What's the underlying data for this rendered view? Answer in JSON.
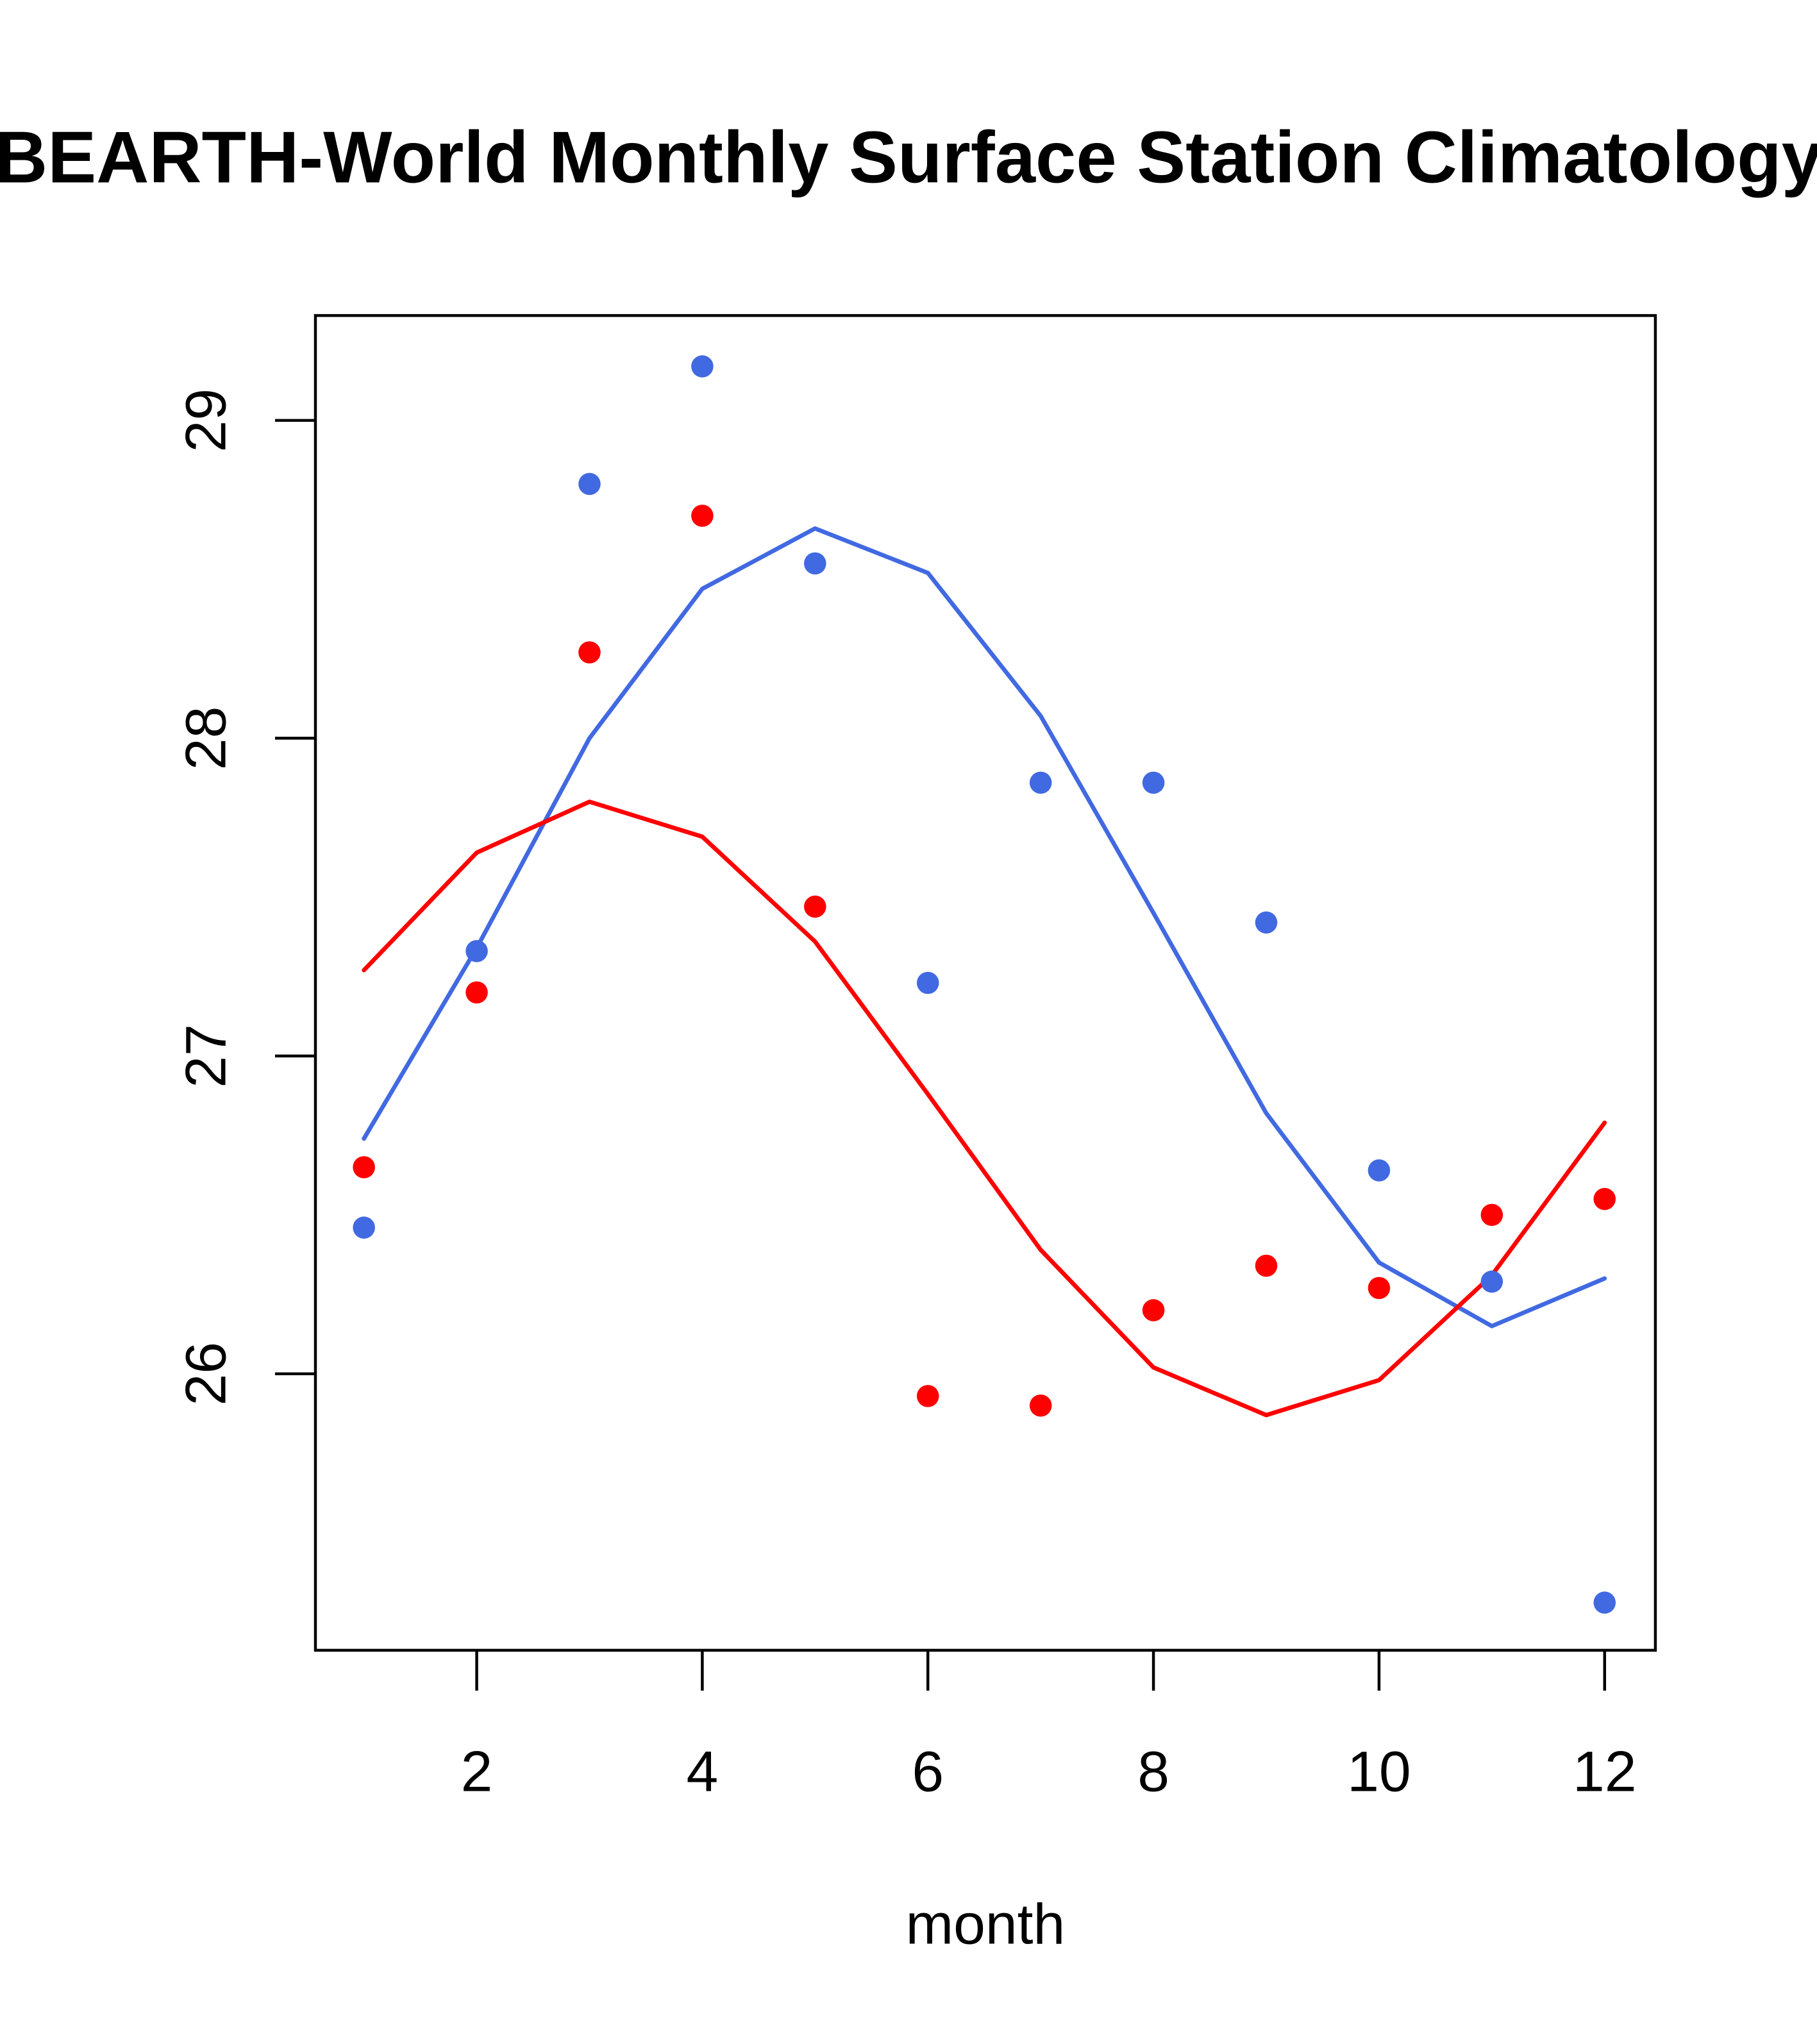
{
  "chart_data": {
    "type": "scatter",
    "title": "BEARTH-World Monthly Surface Station Climatology",
    "xlabel": "month",
    "ylabel": "",
    "xlim": [
      0.57,
      12.45
    ],
    "ylim": [
      25.13,
      29.33
    ],
    "x_ticks": [
      2,
      4,
      6,
      8,
      10,
      12
    ],
    "x_tick_labels": [
      "2",
      "4",
      "6",
      "8",
      "10",
      "12"
    ],
    "y_ticks": [
      26,
      27,
      28,
      29
    ],
    "y_tick_labels": [
      "26",
      "27",
      "28",
      "29"
    ],
    "grid": false,
    "legend": null,
    "x": [
      1,
      2,
      3,
      4,
      5,
      6,
      7,
      8,
      9,
      10,
      11,
      12
    ],
    "series": [
      {
        "name": "blue points",
        "kind": "points",
        "color": "#4169E1",
        "values": [
          26.46,
          27.33,
          28.8,
          29.17,
          28.55,
          27.23,
          27.86,
          27.86,
          27.42,
          26.64,
          26.29,
          25.28
        ]
      },
      {
        "name": "red points",
        "kind": "points",
        "color": "#FF0000",
        "values": [
          26.65,
          27.2,
          28.27,
          28.7,
          27.47,
          25.93,
          25.9,
          26.2,
          26.34,
          26.27,
          26.5,
          26.55
        ]
      },
      {
        "name": "blue fit",
        "kind": "line",
        "color": "#4169E1",
        "values": [
          26.74,
          27.34,
          28.0,
          28.47,
          28.66,
          28.52,
          28.07,
          27.45,
          26.82,
          26.35,
          26.15,
          26.3
        ]
      },
      {
        "name": "red fit",
        "kind": "line",
        "color": "#FF0000",
        "values": [
          27.27,
          27.64,
          27.8,
          27.69,
          27.36,
          26.88,
          26.39,
          26.02,
          25.87,
          25.98,
          26.31,
          26.79
        ]
      }
    ]
  }
}
